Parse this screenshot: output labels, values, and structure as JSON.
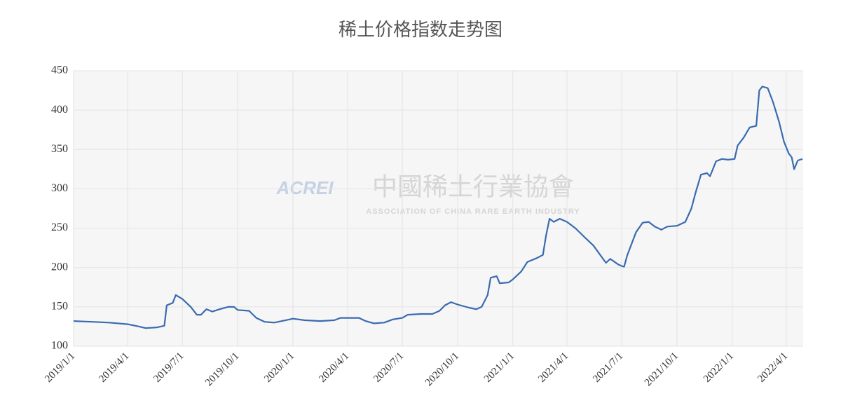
{
  "chart_data": {
    "type": "line",
    "title": "稀土价格指数走势图",
    "watermark": {
      "logo": "ACREI",
      "name": "中國稀土行業協會",
      "subtitle": "ASSOCIATION OF CHINA RARE EARTH INDUSTRY"
    },
    "x": [
      "2019/1/1",
      "2019/2/1",
      "2019/3/1",
      "2019/4/1",
      "2019/4/20",
      "2019/5/1",
      "2019/5/20",
      "2019/6/1",
      "2019/6/5",
      "2019/6/15",
      "2019/6/20",
      "2019/7/1",
      "2019/7/15",
      "2019/7/25",
      "2019/8/1",
      "2019/8/10",
      "2019/8/20",
      "2019/9/1",
      "2019/9/15",
      "2019/9/25",
      "2019/10/1",
      "2019/10/20",
      "2019/11/1",
      "2019/11/15",
      "2019/12/1",
      "2019/12/20",
      "2020/1/1",
      "2020/1/20",
      "2020/2/15",
      "2020/3/10",
      "2020/3/20",
      "2020/4/1",
      "2020/4/20",
      "2020/5/1",
      "2020/5/15",
      "2020/6/1",
      "2020/6/15",
      "2020/7/1",
      "2020/7/10",
      "2020/8/1",
      "2020/8/20",
      "2020/9/1",
      "2020/9/10",
      "2020/9/20",
      "2020/10/1",
      "2020/10/20",
      "2020/11/1",
      "2020/11/10",
      "2020/11/20",
      "2020/11/25",
      "2020/12/5",
      "2020/12/10",
      "2020/12/25",
      "2021/1/1",
      "2021/1/15",
      "2021/1/25",
      "2021/2/10",
      "2021/2/20",
      "2021/2/25",
      "2021/3/3",
      "2021/3/10",
      "2021/3/20",
      "2021/4/1",
      "2021/4/15",
      "2021/5/1",
      "2021/5/15",
      "2021/6/1",
      "2021/6/5",
      "2021/6/12",
      "2021/6/25",
      "2021/7/1",
      "2021/7/5",
      "2021/7/10",
      "2021/7/20",
      "2021/7/25",
      "2021/8/5",
      "2021/8/15",
      "2021/8/25",
      "2021/9/5",
      "2021/9/15",
      "2021/10/1",
      "2021/10/15",
      "2021/10/25",
      "2021/11/1",
      "2021/11/10",
      "2021/11/20",
      "2021/11/25",
      "2021/12/5",
      "2021/12/15",
      "2021/12/25",
      "2022/1/5",
      "2022/1/10",
      "2022/1/20",
      "2022/1/30",
      "2022/2/10",
      "2022/2/15",
      "2022/2/20",
      "2022/3/1",
      "2022/3/10",
      "2022/3/20",
      "2022/3/28",
      "2022/4/5",
      "2022/4/10",
      "2022/4/14",
      "2022/4/20",
      "2022/4/28"
    ],
    "series": [
      {
        "name": "稀土价格指数",
        "color": "#3a6bb0",
        "values": [
          132,
          131,
          130,
          128,
          125,
          123,
          124,
          126,
          152,
          155,
          165,
          160,
          150,
          140,
          140,
          147,
          144,
          147,
          150,
          150,
          146,
          145,
          136,
          131,
          130,
          133,
          135,
          133,
          132,
          133,
          136,
          136,
          136,
          132,
          129,
          130,
          134,
          136,
          140,
          141,
          141,
          145,
          152,
          156,
          153,
          149,
          147,
          150,
          165,
          187,
          189,
          180,
          181,
          185,
          195,
          207,
          212,
          216,
          240,
          262,
          258,
          262,
          258,
          250,
          238,
          228,
          210,
          206,
          211,
          204,
          202,
          201,
          215,
          235,
          245,
          257,
          258,
          252,
          248,
          252,
          253,
          258,
          275,
          295,
          318,
          320,
          316,
          335,
          338,
          337,
          338,
          355,
          365,
          378,
          380,
          425,
          430,
          428,
          410,
          385,
          360,
          345,
          340,
          325,
          336,
          338
        ]
      }
    ],
    "xlim": [
      "2019/1/1",
      "2022/4/29"
    ],
    "xticks": [
      "2019/1/1",
      "2019/4/1",
      "2019/7/1",
      "2019/10/1",
      "2020/1/1",
      "2020/4/1",
      "2020/7/1",
      "2020/10/1",
      "2021/1/1",
      "2021/4/1",
      "2021/7/1",
      "2021/10/1",
      "2022/1/1",
      "2022/4/1"
    ],
    "ylim": [
      100,
      450
    ],
    "yticks": [
      100,
      150,
      200,
      250,
      300,
      350,
      400,
      450
    ],
    "grid": true
  }
}
